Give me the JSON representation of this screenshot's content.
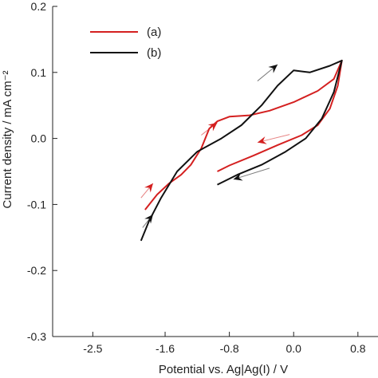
{
  "chart_data": {
    "type": "line",
    "xlabel": "Potential vs. Ag|Ag(I) / V",
    "ylabel": "Current density / mA cm⁻²",
    "xlim": [
      -3.0,
      1.05
    ],
    "ylim": [
      -0.3,
      0.2
    ],
    "x_ticks": [
      -2.5,
      -1.6,
      -0.8,
      0.0,
      0.8
    ],
    "x_tick_labels": [
      "-2.5",
      "-1.6",
      "-0.8",
      "0.0",
      "0.8"
    ],
    "y_ticks": [
      -0.3,
      -0.2,
      -0.1,
      0.0,
      0.1,
      0.2
    ],
    "y_tick_labels": [
      "-0.3",
      "-0.2",
      "-0.1",
      "0.0",
      "0.1",
      "0.2"
    ],
    "grid": false,
    "legend_position": "top-left",
    "series": [
      {
        "name": "(a)",
        "color": "#d42020",
        "points": [
          [
            -0.95,
            -0.05
          ],
          [
            -0.8,
            -0.041
          ],
          [
            -0.5,
            -0.026
          ],
          [
            -0.2,
            -0.01
          ],
          [
            0.1,
            0.005
          ],
          [
            0.3,
            0.02
          ],
          [
            0.45,
            0.045
          ],
          [
            0.55,
            0.08
          ],
          [
            0.6,
            0.118
          ],
          [
            0.5,
            0.09
          ],
          [
            0.3,
            0.072
          ],
          [
            0.0,
            0.055
          ],
          [
            -0.3,
            0.042
          ],
          [
            -0.55,
            0.035
          ],
          [
            -0.8,
            0.033
          ],
          [
            -0.95,
            0.026
          ],
          [
            -1.05,
            0.015
          ],
          [
            -1.15,
            -0.015
          ],
          [
            -1.28,
            -0.04
          ],
          [
            -1.4,
            -0.055
          ],
          [
            -1.55,
            -0.068
          ],
          [
            -1.7,
            -0.085
          ],
          [
            -1.85,
            -0.108
          ]
        ]
      },
      {
        "name": "(b)",
        "color": "#111111",
        "points": [
          [
            -0.95,
            -0.07
          ],
          [
            -0.7,
            -0.055
          ],
          [
            -0.4,
            -0.04
          ],
          [
            -0.1,
            -0.02
          ],
          [
            0.15,
            0.0
          ],
          [
            0.35,
            0.03
          ],
          [
            0.5,
            0.07
          ],
          [
            0.6,
            0.118
          ],
          [
            0.45,
            0.11
          ],
          [
            0.2,
            0.1
          ],
          [
            0.0,
            0.103
          ],
          [
            -0.2,
            0.08
          ],
          [
            -0.4,
            0.05
          ],
          [
            -0.65,
            0.02
          ],
          [
            -0.9,
            0.0
          ],
          [
            -1.2,
            -0.02
          ],
          [
            -1.45,
            -0.05
          ],
          [
            -1.65,
            -0.09
          ],
          [
            -1.8,
            -0.125
          ],
          [
            -1.9,
            -0.155
          ]
        ]
      }
    ],
    "direction_arrows": [
      {
        "series": "(a)",
        "from": [
          -1.9,
          -0.09
        ],
        "to": [
          -1.75,
          -0.068
        ]
      },
      {
        "series": "(a)",
        "from": [
          -1.15,
          0.005
        ],
        "to": [
          -0.95,
          0.024
        ]
      },
      {
        "series": "(a)",
        "from": [
          -0.05,
          0.006
        ],
        "to": [
          -0.45,
          -0.006
        ]
      },
      {
        "series": "(b)",
        "from": [
          -1.88,
          -0.135
        ],
        "to": [
          -1.75,
          -0.115
        ]
      },
      {
        "series": "(b)",
        "from": [
          -0.45,
          0.087
        ],
        "to": [
          -0.2,
          0.112
        ]
      },
      {
        "series": "(b)",
        "from": [
          -0.3,
          -0.045
        ],
        "to": [
          -0.75,
          -0.062
        ]
      }
    ]
  }
}
